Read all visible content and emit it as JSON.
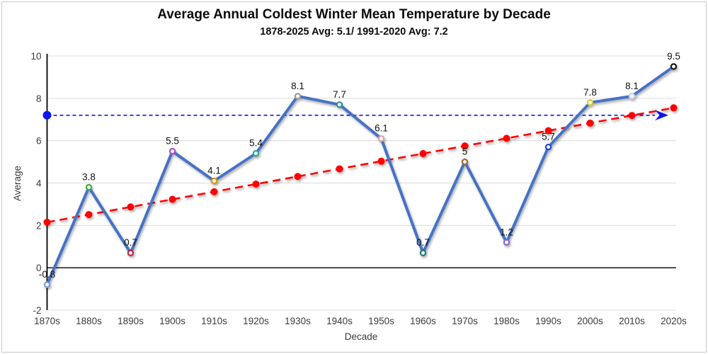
{
  "chart_data": {
    "type": "line",
    "title": "Average Annual Coldest Winter Mean Temperature  by Decade",
    "subtitle": "1878-2025 Avg: 5.1/ 1991-2020 Avg: 7.2",
    "xlabel": "Decade",
    "ylabel": "Average",
    "categories": [
      "1870s",
      "1880s",
      "1890s",
      "1900s",
      "1910s",
      "1920s",
      "1930s",
      "1940s",
      "1950s",
      "1960s",
      "1970s",
      "1980s",
      "1990s",
      "2000s",
      "2010s",
      "2020s"
    ],
    "ylim": [
      -2,
      10
    ],
    "yticks": [
      10,
      8,
      6,
      4,
      2,
      0,
      -2
    ],
    "grid": "horizontal",
    "legend_position": "none",
    "series": [
      {
        "name": "decade-average",
        "type": "line",
        "color": "#4472C4",
        "values": [
          -0.8,
          3.8,
          0.7,
          5.5,
          4.1,
          5.4,
          8.1,
          7.7,
          6.1,
          0.7,
          5,
          1.2,
          5.7,
          7.8,
          8.1,
          9.5
        ],
        "point_labels": [
          "-0.8",
          "3.8",
          "0.7",
          "5.5",
          "4.1",
          "5.4",
          "8.1",
          "7.7",
          "6.1",
          "0.7",
          "5",
          "1.2",
          "5.7",
          "7.8",
          "8.1",
          "9.5"
        ],
        "marker_colors": [
          "#7B9BE0",
          "#3CB043",
          "#C2223E",
          "#B44BC8",
          "#E49310",
          "#2AA797",
          "#9C9C9C",
          "#35879B",
          "#E59FA6",
          "#1F7A6D",
          "#A2652E",
          "#8C64D2",
          "#1B45D7",
          "#D5CD2A",
          "#C9CDE9",
          "#151515"
        ]
      },
      {
        "name": "linear-trend",
        "type": "dashed-line",
        "color": "#FF0000",
        "values": [
          2.15,
          2.51,
          2.87,
          3.23,
          3.59,
          3.95,
          4.31,
          4.67,
          5.03,
          5.39,
          5.75,
          6.11,
          6.47,
          6.83,
          7.19,
          7.55
        ]
      },
      {
        "name": "reference-1991-2020-avg",
        "type": "dashed-horizontal-arrow",
        "color": "#0B16F0",
        "value": 7.2
      }
    ],
    "colors": {
      "gridline": "#dbdbdb",
      "axis_line": "#000000",
      "zero_line": "#000000",
      "tick_label": "#3b3b3b",
      "data_label": "#111111"
    }
  }
}
